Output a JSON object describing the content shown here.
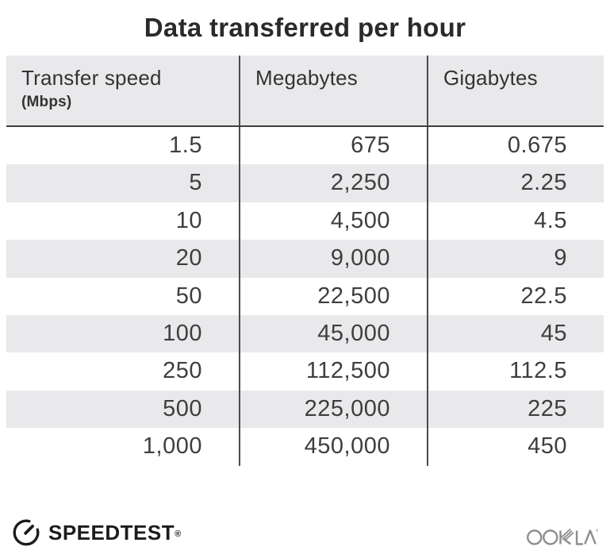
{
  "title": "Data transferred per hour",
  "table": {
    "columns": [
      {
        "label": "Transfer speed",
        "sublabel": "(Mbps)"
      },
      {
        "label": "Megabytes",
        "sublabel": ""
      },
      {
        "label": "Gigabytes",
        "sublabel": ""
      }
    ],
    "rows": [
      [
        "1.5",
        "675",
        "0.675"
      ],
      [
        "5",
        "2,250",
        "2.25"
      ],
      [
        "10",
        "4,500",
        "4.5"
      ],
      [
        "20",
        "9,000",
        "9"
      ],
      [
        "50",
        "22,500",
        "22.5"
      ],
      [
        "100",
        "45,000",
        "45"
      ],
      [
        "250",
        "112,500",
        "112.5"
      ],
      [
        "500",
        "225,000",
        "225"
      ],
      [
        "1,000",
        "450,000",
        "450"
      ]
    ]
  },
  "chart_data": {
    "type": "table",
    "title": "Data transferred per hour",
    "columns": [
      "Transfer speed (Mbps)",
      "Megabytes",
      "Gigabytes"
    ],
    "rows": [
      [
        1.5,
        675,
        0.675
      ],
      [
        5,
        2250,
        2.25
      ],
      [
        10,
        4500,
        4.5
      ],
      [
        20,
        9000,
        9
      ],
      [
        50,
        22500,
        22.5
      ],
      [
        100,
        45000,
        45
      ],
      [
        250,
        112500,
        112.5
      ],
      [
        500,
        225000,
        225
      ],
      [
        1000,
        450000,
        450
      ]
    ]
  },
  "footer": {
    "speedtest_label": "SPEEDTEST",
    "speedtest_registered_mark": "®",
    "ookla_label": "OOKLA"
  },
  "colors": {
    "header_bg": "#e9e9eb",
    "row_alt_bg": "#e9e9ec",
    "divider": "#4b4b4b",
    "header_underline": "#3e3e3e",
    "title_text": "#2a2a2a",
    "body_text": "#3e3e3e",
    "speedtest_black": "#1c1c1c",
    "ookla_gray": "#8e8e8e"
  }
}
